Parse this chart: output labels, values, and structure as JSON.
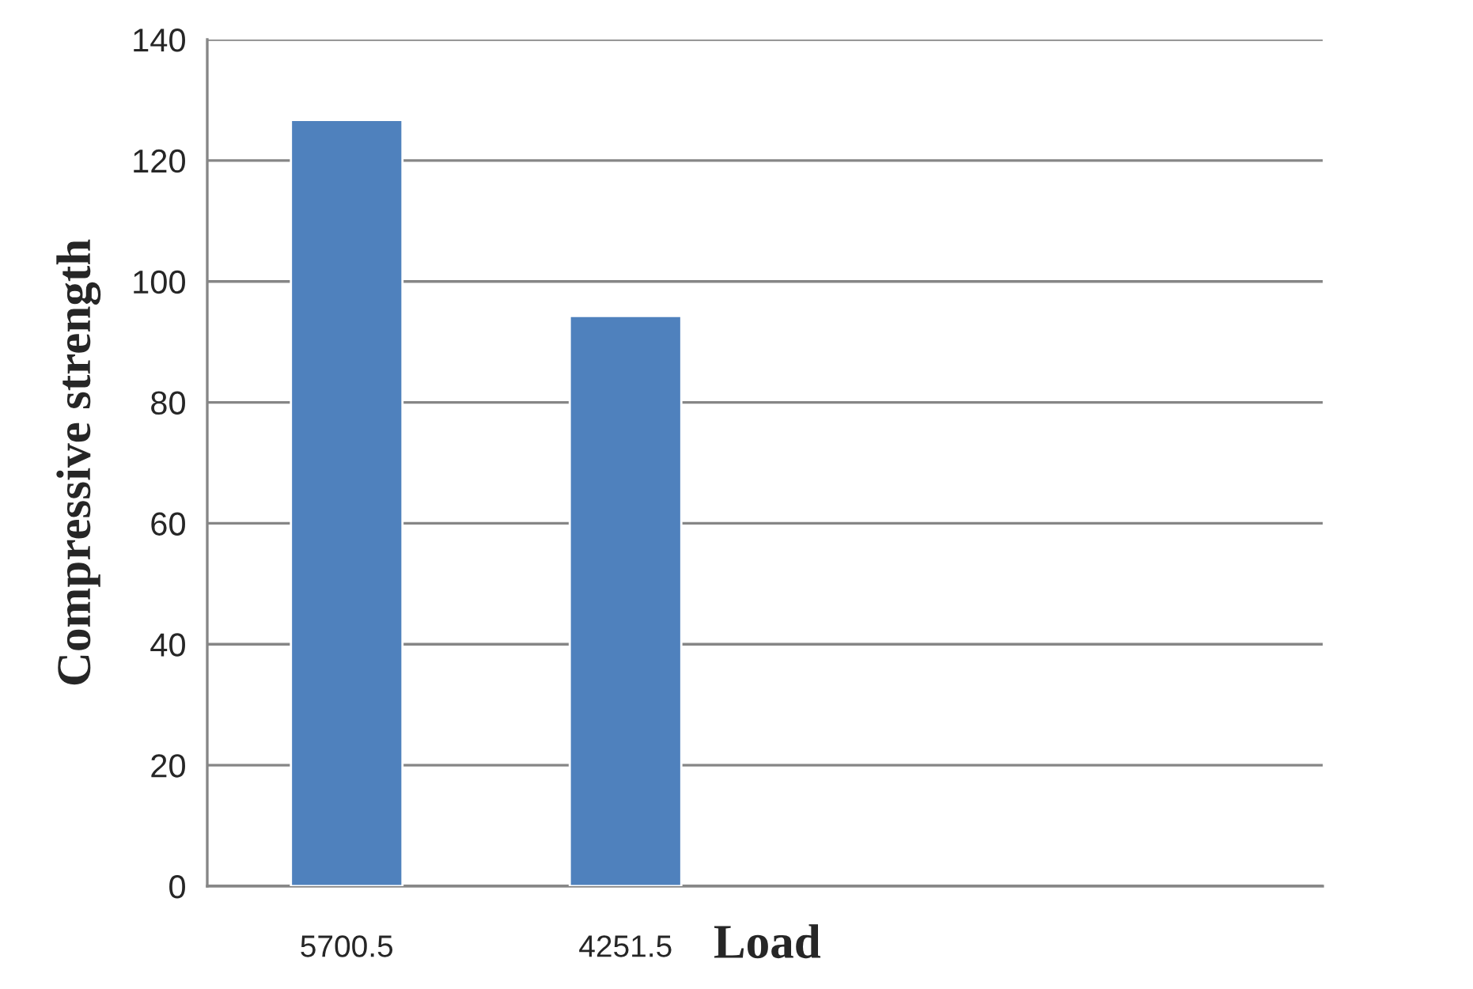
{
  "chart_data": {
    "type": "bar",
    "xlabel": "Load",
    "ylabel": "Compressive strength",
    "categories": [
      "5700.5",
      "4251.5",
      null,
      null
    ],
    "values": [
      126.7,
      94.3,
      null,
      null
    ],
    "color": "#4f81bd",
    "ylim": [
      0,
      140
    ],
    "yticks": [
      0,
      20,
      40,
      60,
      80,
      100,
      120,
      140
    ],
    "grid": "y"
  }
}
